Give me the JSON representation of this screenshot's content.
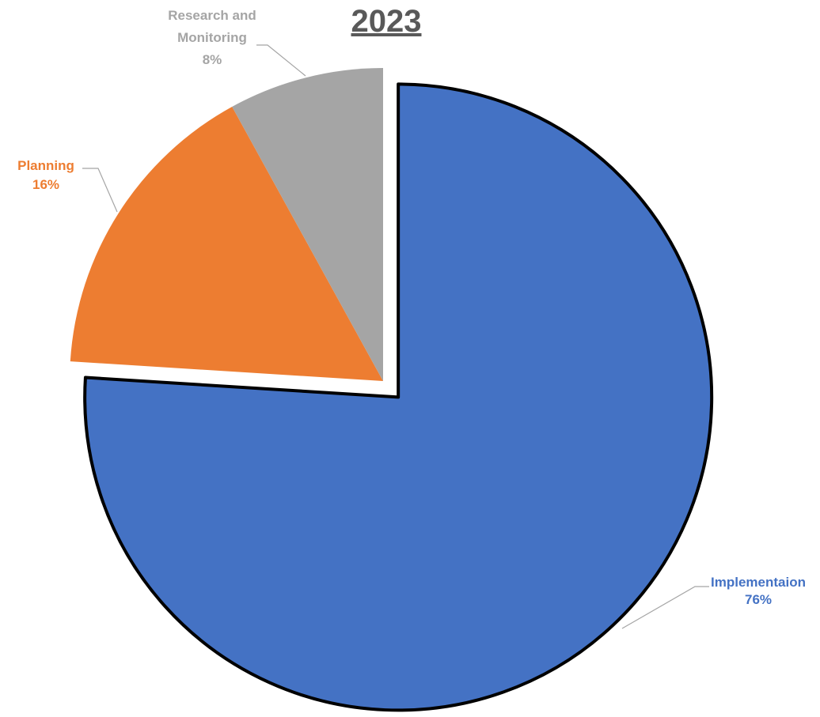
{
  "chart_data": {
    "type": "pie",
    "title": "2023",
    "categories": [
      "Implementaion",
      "Planning",
      "Research and Monitoring"
    ],
    "values": [
      76,
      16,
      8
    ],
    "value_labels": [
      "76%",
      "16%",
      "8%"
    ],
    "colors": [
      "#4472C4",
      "#ED7D31",
      "#A5A5A5"
    ],
    "label_colors": [
      "#4472C4",
      "#ED7D31",
      "#A5A5A5"
    ],
    "label_lines": [
      [
        "Implementaion",
        "76%"
      ],
      [
        "Planning",
        "16%"
      ],
      [
        "Research and",
        "Monitoring",
        "8%"
      ]
    ],
    "exploded_slice": "Implementaion",
    "legend": "none"
  }
}
